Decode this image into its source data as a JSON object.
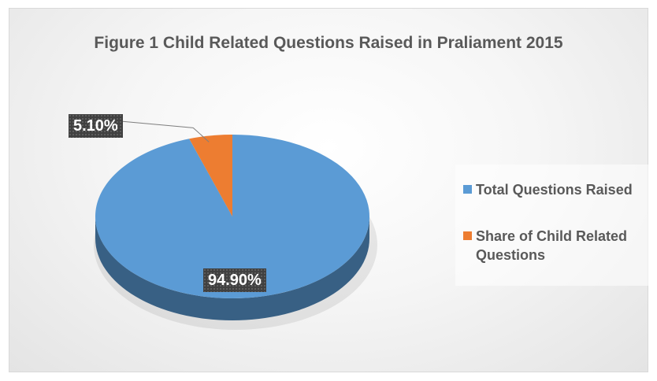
{
  "chart_data": {
    "type": "pie",
    "title": "Figure 1 Child Related Questions Raised in Praliament 2015",
    "slices": [
      {
        "label": "Total Questions Raised",
        "value": 94.9,
        "display": "94.90%",
        "color": "#5b9bd5"
      },
      {
        "label": "Share of Child Related Questions",
        "value": 5.1,
        "display": "5.10%",
        "color": "#ed7d31"
      }
    ],
    "legend_position": "right",
    "style": "3d"
  }
}
